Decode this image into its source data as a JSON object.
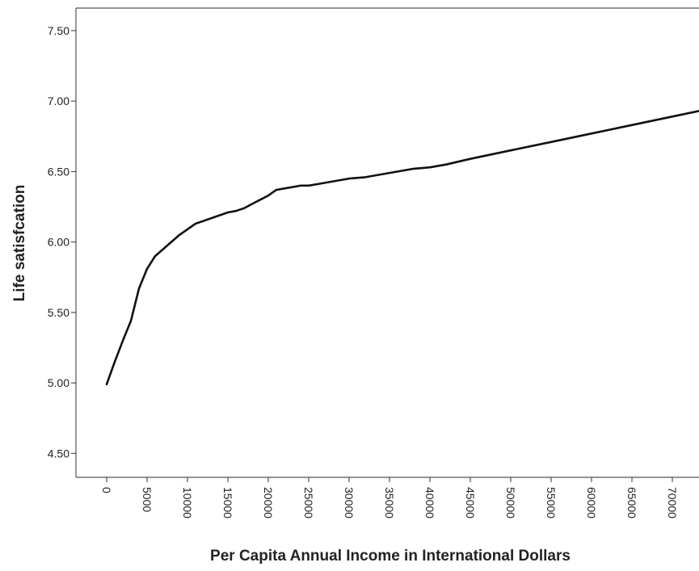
{
  "chart_data": {
    "type": "line",
    "title": "",
    "xlabel": "Per Capita Annual Income in International Dollars",
    "ylabel": "Life satisfcation",
    "xlim": [
      -3800,
      73300
    ],
    "ylim": [
      4.33,
      7.66
    ],
    "x_ticks": [
      0,
      5000,
      10000,
      15000,
      20000,
      25000,
      30000,
      35000,
      40000,
      45000,
      50000,
      55000,
      60000,
      65000,
      70000
    ],
    "x_tick_labels": [
      "0",
      "5000",
      "10000",
      "15000",
      "20000",
      "25000",
      "30000",
      "35000",
      "40000",
      "45000",
      "50000",
      "55000",
      "60000",
      "65000",
      "70000"
    ],
    "y_ticks": [
      4.5,
      5.0,
      5.5,
      6.0,
      6.5,
      7.0,
      7.5
    ],
    "y_tick_labels": [
      "4.50",
      "5.00",
      "5.50",
      "6.00",
      "6.50",
      "7.00",
      "7.50"
    ],
    "grid": false,
    "legend": "none",
    "line_color": "#111111",
    "series": [
      {
        "x": [
          0,
          1000,
          2000,
          3000,
          4000,
          5000,
          6000,
          7000,
          8000,
          9000,
          10000,
          11000,
          12000,
          13000,
          14000,
          15000,
          16000,
          17000,
          18000,
          19000,
          20000,
          21000,
          22000,
          23000,
          24000,
          25000,
          26000,
          28000,
          30000,
          32000,
          34000,
          36000,
          38000,
          40000,
          42000,
          45000,
          50000,
          55000,
          60000,
          65000,
          70000,
          73300
        ],
        "y": [
          4.99,
          5.15,
          5.3,
          5.44,
          5.67,
          5.81,
          5.9,
          5.95,
          6.0,
          6.05,
          6.09,
          6.13,
          6.15,
          6.17,
          6.19,
          6.21,
          6.22,
          6.24,
          6.27,
          6.3,
          6.33,
          6.37,
          6.38,
          6.39,
          6.4,
          6.4,
          6.41,
          6.43,
          6.45,
          6.46,
          6.48,
          6.5,
          6.52,
          6.53,
          6.55,
          6.59,
          6.65,
          6.71,
          6.77,
          6.83,
          6.89,
          6.93
        ]
      }
    ]
  }
}
